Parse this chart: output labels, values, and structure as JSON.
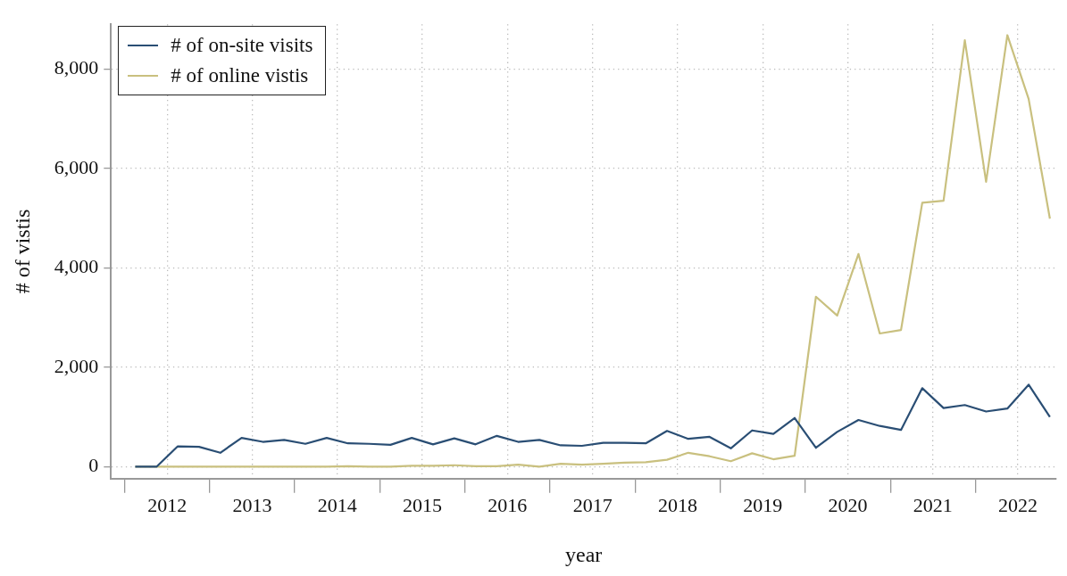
{
  "chart_data": {
    "type": "line",
    "xlabel": "year",
    "ylabel": "# of vistis",
    "x": [
      2012.125,
      2012.375,
      2012.625,
      2012.875,
      2013.125,
      2013.375,
      2013.625,
      2013.875,
      2014.125,
      2014.375,
      2014.625,
      2014.875,
      2015.125,
      2015.375,
      2015.625,
      2015.875,
      2016.125,
      2016.375,
      2016.625,
      2016.875,
      2017.125,
      2017.375,
      2017.625,
      2017.875,
      2018.125,
      2018.375,
      2018.625,
      2018.875,
      2019.125,
      2019.375,
      2019.625,
      2019.875,
      2020.125,
      2020.375,
      2020.625,
      2020.875,
      2021.125,
      2021.375,
      2021.625,
      2021.875,
      2022.125,
      2022.375,
      2022.625,
      2022.875
    ],
    "series": [
      {
        "name": "# of on-site visits",
        "color": "#2a4e74",
        "values": [
          0,
          0,
          410,
          400,
          280,
          580,
          500,
          540,
          460,
          580,
          470,
          460,
          440,
          580,
          450,
          570,
          450,
          620,
          500,
          540,
          430,
          420,
          480,
          480,
          470,
          720,
          560,
          600,
          370,
          730,
          660,
          980,
          380,
          700,
          940,
          820,
          740,
          1580,
          1180,
          1240,
          1110,
          1170,
          1650,
          1000
        ]
      },
      {
        "name": "# of online vistis",
        "color": "#c9c07f",
        "values": [
          0,
          0,
          0,
          0,
          0,
          0,
          0,
          0,
          0,
          0,
          10,
          0,
          0,
          20,
          20,
          30,
          10,
          10,
          40,
          0,
          60,
          40,
          60,
          80,
          90,
          140,
          280,
          210,
          110,
          270,
          150,
          220,
          3420,
          3040,
          4280,
          2680,
          2750,
          5310,
          5350,
          8580,
          5730,
          8680,
          7400,
          4990
        ]
      }
    ],
    "xlim": [
      2011.84,
      2022.95
    ],
    "xticks": [
      {
        "value": 2012,
        "label": null
      },
      {
        "value": 2012.5,
        "label": "2012"
      },
      {
        "value": 2013,
        "label": null
      },
      {
        "value": 2013.5,
        "label": "2013"
      },
      {
        "value": 2014,
        "label": null
      },
      {
        "value": 2014.5,
        "label": "2014"
      },
      {
        "value": 2015,
        "label": null
      },
      {
        "value": 2015.5,
        "label": "2015"
      },
      {
        "value": 2016,
        "label": null
      },
      {
        "value": 2016.5,
        "label": "2016"
      },
      {
        "value": 2017,
        "label": null
      },
      {
        "value": 2017.5,
        "label": "2017"
      },
      {
        "value": 2018,
        "label": null
      },
      {
        "value": 2018.5,
        "label": "2018"
      },
      {
        "value": 2019,
        "label": null
      },
      {
        "value": 2019.5,
        "label": "2019"
      },
      {
        "value": 2020,
        "label": null
      },
      {
        "value": 2020.5,
        "label": "2020"
      },
      {
        "value": 2021,
        "label": null
      },
      {
        "value": 2021.5,
        "label": "2021"
      },
      {
        "value": 2022,
        "label": null
      },
      {
        "value": 2022.5,
        "label": "2022"
      }
    ],
    "ylim": [
      -240,
      8900
    ],
    "yticks": [
      0,
      {
        "value": 2000,
        "label": "2,000"
      },
      {
        "value": 4000,
        "label": "4,000"
      },
      {
        "value": 6000,
        "label": "6,000"
      },
      {
        "value": 8000,
        "label": "8,000"
      }
    ],
    "grid": true,
    "legend": "top left",
    "marker": "none",
    "line_style": "solid"
  }
}
